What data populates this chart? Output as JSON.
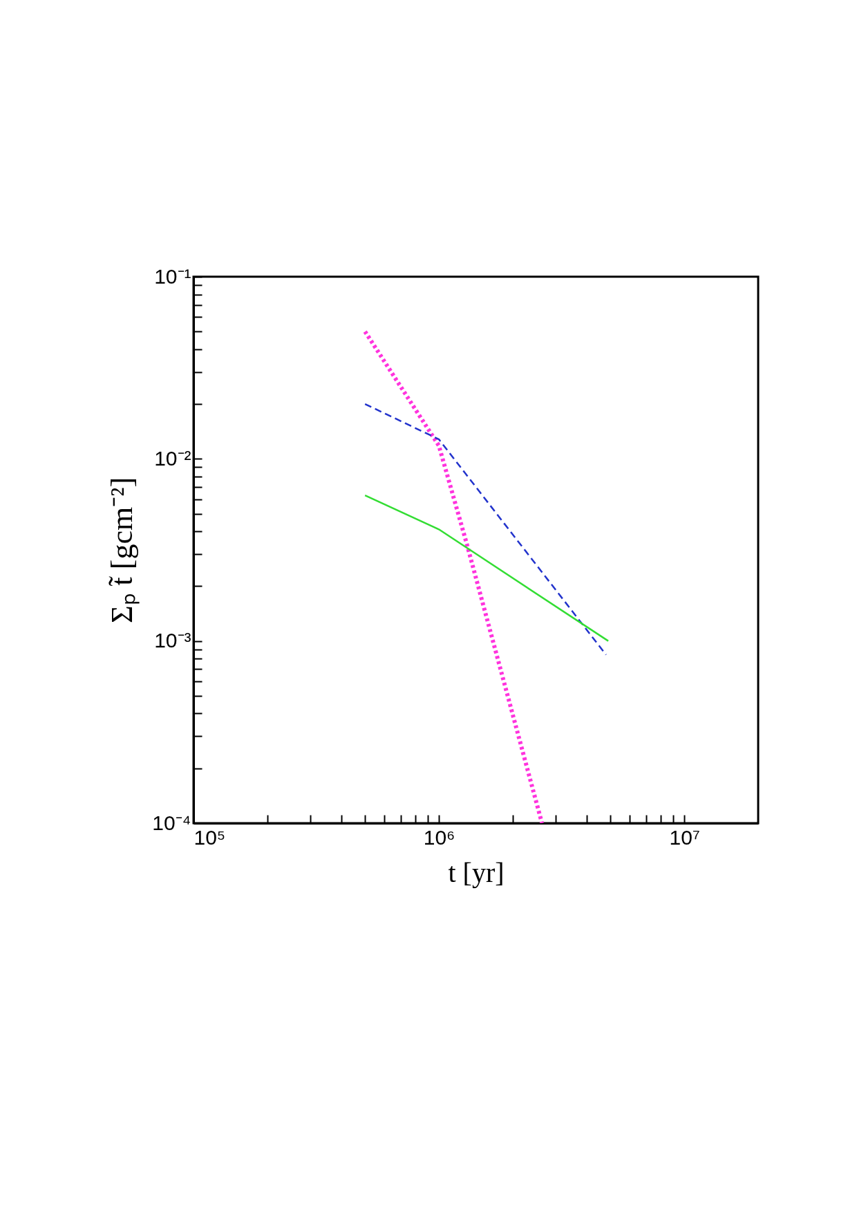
{
  "chart_data": {
    "type": "line",
    "xlabel": "t [yr]",
    "ylabel": "Σₚ t̃ [gcm⁻²]",
    "log": "xy",
    "grid": false,
    "marker": "none",
    "xlim": [
      100000,
      20000000
    ],
    "ylim": [
      0.0001,
      0.1
    ],
    "xticks": [
      {
        "value": 100000,
        "label": "10⁵"
      },
      {
        "value": 200000,
        "label": null
      },
      {
        "value": 300000,
        "label": null
      },
      {
        "value": 400000,
        "label": null
      },
      {
        "value": 500000,
        "label": null
      },
      {
        "value": 600000,
        "label": null
      },
      {
        "value": 700000,
        "label": null
      },
      {
        "value": 800000,
        "label": null
      },
      {
        "value": 900000,
        "label": null
      },
      {
        "value": 1000000,
        "label": "10⁶"
      },
      {
        "value": 2000000,
        "label": null
      },
      {
        "value": 3000000,
        "label": null
      },
      {
        "value": 4000000,
        "label": null
      },
      {
        "value": 5000000,
        "label": null
      },
      {
        "value": 6000000,
        "label": null
      },
      {
        "value": 7000000,
        "label": null
      },
      {
        "value": 8000000,
        "label": null
      },
      {
        "value": 9000000,
        "label": null
      },
      {
        "value": 10000000,
        "label": "10⁷"
      }
    ],
    "yticks": [
      {
        "value": 0.0001,
        "label": "10⁻⁴"
      },
      {
        "value": 0.0002,
        "label": null
      },
      {
        "value": 0.0003,
        "label": null
      },
      {
        "value": 0.0004,
        "label": null
      },
      {
        "value": 0.0005,
        "label": null
      },
      {
        "value": 0.0006,
        "label": null
      },
      {
        "value": 0.0007,
        "label": null
      },
      {
        "value": 0.0008,
        "label": null
      },
      {
        "value": 0.0009,
        "label": null
      },
      {
        "value": 0.001,
        "label": "10⁻³"
      },
      {
        "value": 0.002,
        "label": null
      },
      {
        "value": 0.003,
        "label": null
      },
      {
        "value": 0.004,
        "label": null
      },
      {
        "value": 0.005,
        "label": null
      },
      {
        "value": 0.006,
        "label": null
      },
      {
        "value": 0.007,
        "label": null
      },
      {
        "value": 0.008,
        "label": null
      },
      {
        "value": 0.009,
        "label": null
      },
      {
        "value": 0.01,
        "label": "10⁻²"
      },
      {
        "value": 0.02,
        "label": null
      },
      {
        "value": 0.03,
        "label": null
      },
      {
        "value": 0.04,
        "label": null
      },
      {
        "value": 0.05,
        "label": null
      },
      {
        "value": 0.06,
        "label": null
      },
      {
        "value": 0.07,
        "label": null
      },
      {
        "value": 0.08,
        "label": null
      },
      {
        "value": 0.09,
        "label": null
      },
      {
        "value": 0.1,
        "label": "10⁻¹"
      }
    ],
    "series": [
      {
        "color": "#ff33dd",
        "line_style": "dotted",
        "x": [
          500000,
          1000000,
          1300000,
          2630000
        ],
        "values": [
          0.05,
          0.0118,
          0.0034,
          0.0001
        ]
      },
      {
        "color": "#2233cc",
        "line_style": "dashed",
        "x": [
          500000,
          1000000,
          4800000
        ],
        "values": [
          0.02,
          0.0128,
          0.00084
        ]
      },
      {
        "color": "#33dd33",
        "line_style": "solid",
        "x": [
          500000,
          1000000,
          4900000
        ],
        "values": [
          0.0063,
          0.0041,
          0.001
        ]
      }
    ]
  }
}
